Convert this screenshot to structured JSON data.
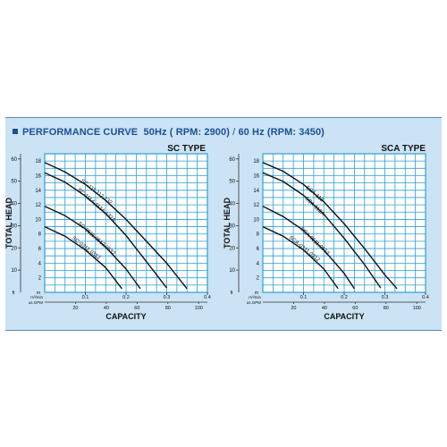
{
  "header": {
    "title": "PERFORMANCE CURVE",
    "hz50": "50Hz ( RPM: 2900)",
    "separator": "/",
    "hz60": "60 Hz (RPM: 3450)"
  },
  "colors": {
    "panel": "#cbe3f5",
    "grid": "#2aa0d6",
    "curve": "#111111",
    "title": "#1b4f96"
  },
  "chart_data": [
    {
      "type": "line",
      "title": "SC TYPE",
      "ylabel": "TOTAL HEAD",
      "xlabel": "CAPACITY",
      "y_unit_ft": "ft",
      "y_unit_m": "m",
      "x_unit_m3": "m³/min",
      "x_unit_gpm": "us.GPM",
      "ft_ticks": [
        60,
        50,
        40,
        30,
        20,
        10
      ],
      "m_ticks": [
        18,
        16,
        14,
        12,
        10,
        8,
        6,
        4,
        2
      ],
      "m3_ticks": [
        "0.1",
        "0.2",
        "0.3",
        "0.4"
      ],
      "gpm_ticks": [
        "20",
        "40",
        "60",
        "80",
        "100"
      ],
      "xlim": [
        0,
        0.4
      ],
      "ylim": [
        0,
        19
      ],
      "grid": true,
      "series": [
        {
          "name": "SC-111,112,132",
          "points": [
            [
              0,
              17.8
            ],
            [
              0.05,
              16.5
            ],
            [
              0.1,
              14.8
            ],
            [
              0.15,
              12.6
            ],
            [
              0.2,
              10
            ],
            [
              0.25,
              7
            ],
            [
              0.3,
              4
            ],
            [
              0.35,
              0.5
            ]
          ]
        },
        {
          "name": "SC-111A,112A,132A",
          "points": [
            [
              0,
              16.4
            ],
            [
              0.05,
              15.1
            ],
            [
              0.1,
              13.2
            ],
            [
              0.15,
              10.8
            ],
            [
              0.2,
              7.8
            ],
            [
              0.25,
              4.2
            ],
            [
              0.3,
              0.6
            ]
          ]
        },
        {
          "name": "SC-0511,0512,0532",
          "points": [
            [
              0,
              11.8
            ],
            [
              0.05,
              10.5
            ],
            [
              0.1,
              8.7
            ],
            [
              0.15,
              6.2
            ],
            [
              0.2,
              3.2
            ],
            [
              0.235,
              0.5
            ]
          ]
        },
        {
          "name": "SC-0311,0312",
          "points": [
            [
              0,
              9
            ],
            [
              0.05,
              7.7
            ],
            [
              0.1,
              5.8
            ],
            [
              0.15,
              3.4
            ],
            [
              0.19,
              0.5
            ]
          ]
        }
      ]
    },
    {
      "type": "line",
      "title": "SCA TYPE",
      "ylabel": "TOTAL HEAD",
      "xlabel": "CAPACITY",
      "y_unit_ft": "ft",
      "y_unit_m": "m",
      "x_unit_m3": "m³/min",
      "x_unit_gpm": "us.GPM",
      "ft_ticks": [
        60,
        50,
        40,
        30,
        20,
        10
      ],
      "m_ticks": [
        18,
        16,
        14,
        12,
        10,
        8,
        6,
        4,
        2
      ],
      "m3_ticks": [
        "0.1",
        "0.2",
        "0.3",
        "0.4"
      ],
      "gpm_ticks": [
        "20",
        "40",
        "60",
        "80",
        "100"
      ],
      "xlim": [
        0,
        0.4
      ],
      "ylim": [
        0,
        19
      ],
      "grid": true,
      "series": [
        {
          "name": "SCA-112",
          "points": [
            [
              0,
              17.8
            ],
            [
              0.05,
              16.6
            ],
            [
              0.1,
              14.8
            ],
            [
              0.15,
              12.4
            ],
            [
              0.2,
              9.4
            ],
            [
              0.25,
              6
            ],
            [
              0.3,
              2.4
            ],
            [
              0.33,
              0.5
            ]
          ]
        },
        {
          "name": "SCA-112A",
          "points": [
            [
              0,
              16.4
            ],
            [
              0.05,
              15.2
            ],
            [
              0.1,
              13.3
            ],
            [
              0.15,
              10.7
            ],
            [
              0.2,
              7.4
            ],
            [
              0.25,
              3.8
            ],
            [
              0.29,
              0.6
            ]
          ]
        },
        {
          "name": "SCA-0511,0512",
          "points": [
            [
              0,
              11.8
            ],
            [
              0.05,
              10.4
            ],
            [
              0.1,
              8.5
            ],
            [
              0.15,
              5.8
            ],
            [
              0.2,
              2.6
            ],
            [
              0.225,
              0.5
            ]
          ]
        },
        {
          "name": "SCA-0311,0312",
          "points": [
            [
              0,
              9
            ],
            [
              0.05,
              7.7
            ],
            [
              0.1,
              5.8
            ],
            [
              0.15,
              3.2
            ],
            [
              0.185,
              0.5
            ]
          ]
        }
      ]
    }
  ]
}
